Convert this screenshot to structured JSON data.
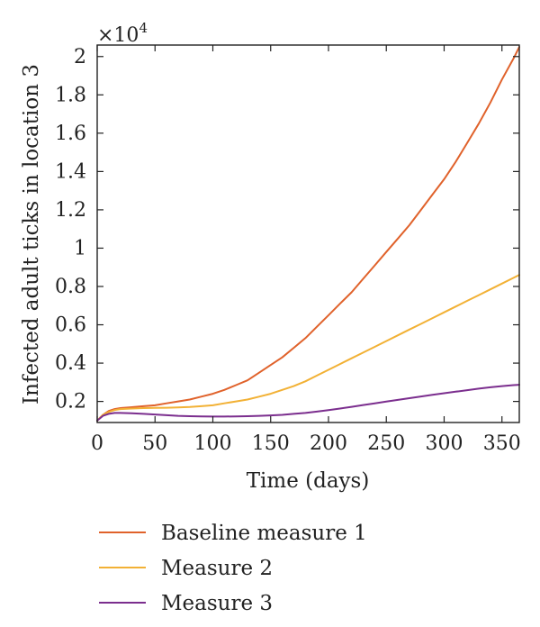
{
  "chart_data": {
    "type": "line",
    "xlabel": "Time (days)",
    "ylabel": "Infected adult ticks in location 3",
    "y_multiplier_base": "×10",
    "y_multiplier_exp": "4",
    "xlim": [
      0,
      365
    ],
    "ylim": [
      0.09,
      2.06
    ],
    "x_ticks": [
      0,
      50,
      100,
      150,
      200,
      250,
      300,
      350
    ],
    "x_tick_labels": [
      "0",
      "50",
      "100",
      "150",
      "200",
      "250",
      "300",
      "350"
    ],
    "y_ticks": [
      0.2,
      0.4,
      0.6,
      0.8,
      1.0,
      1.2,
      1.4,
      1.6,
      1.8,
      2.0
    ],
    "y_tick_labels": [
      "0.2",
      "0.4",
      "0.6",
      "0.8",
      "1",
      "1.2",
      "1.4",
      "1.6",
      "1.8",
      "2"
    ],
    "grid": false,
    "legend_position": "bottom",
    "series": [
      {
        "name": "Baseline measure 1",
        "color": "#E0622B",
        "x": [
          0,
          5,
          10,
          15,
          20,
          30,
          40,
          50,
          60,
          70,
          80,
          90,
          100,
          110,
          120,
          130,
          140,
          150,
          160,
          170,
          180,
          190,
          200,
          210,
          220,
          230,
          240,
          250,
          260,
          270,
          280,
          290,
          300,
          310,
          320,
          330,
          340,
          350,
          360,
          365
        ],
        "values": [
          0.1,
          0.13,
          0.15,
          0.16,
          0.165,
          0.17,
          0.175,
          0.18,
          0.19,
          0.2,
          0.21,
          0.225,
          0.24,
          0.26,
          0.285,
          0.31,
          0.35,
          0.39,
          0.43,
          0.48,
          0.53,
          0.59,
          0.65,
          0.71,
          0.77,
          0.84,
          0.91,
          0.98,
          1.05,
          1.12,
          1.2,
          1.28,
          1.36,
          1.45,
          1.55,
          1.65,
          1.76,
          1.88,
          1.99,
          2.05
        ]
      },
      {
        "name": "Measure 2",
        "color": "#F2B135",
        "x": [
          0,
          5,
          10,
          15,
          20,
          30,
          40,
          50,
          60,
          70,
          80,
          90,
          100,
          110,
          120,
          130,
          140,
          150,
          160,
          170,
          180,
          190,
          200,
          210,
          220,
          230,
          240,
          250,
          260,
          270,
          280,
          290,
          300,
          310,
          320,
          330,
          340,
          350,
          360,
          365
        ],
        "values": [
          0.1,
          0.13,
          0.145,
          0.155,
          0.16,
          0.163,
          0.165,
          0.166,
          0.167,
          0.169,
          0.171,
          0.175,
          0.18,
          0.19,
          0.2,
          0.21,
          0.225,
          0.24,
          0.26,
          0.28,
          0.305,
          0.335,
          0.365,
          0.395,
          0.425,
          0.455,
          0.485,
          0.515,
          0.545,
          0.575,
          0.605,
          0.635,
          0.665,
          0.695,
          0.725,
          0.755,
          0.785,
          0.815,
          0.845,
          0.86
        ]
      },
      {
        "name": "Measure 3",
        "color": "#7B2E8E",
        "x": [
          0,
          5,
          10,
          15,
          20,
          30,
          40,
          50,
          60,
          70,
          80,
          90,
          100,
          110,
          120,
          130,
          140,
          150,
          160,
          170,
          180,
          190,
          200,
          210,
          220,
          230,
          240,
          250,
          260,
          270,
          280,
          290,
          300,
          310,
          320,
          330,
          340,
          350,
          360,
          365
        ],
        "values": [
          0.1,
          0.125,
          0.135,
          0.14,
          0.14,
          0.138,
          0.135,
          0.132,
          0.128,
          0.125,
          0.123,
          0.122,
          0.121,
          0.121,
          0.122,
          0.123,
          0.125,
          0.127,
          0.13,
          0.135,
          0.14,
          0.147,
          0.155,
          0.163,
          0.172,
          0.181,
          0.19,
          0.199,
          0.208,
          0.217,
          0.226,
          0.235,
          0.243,
          0.251,
          0.259,
          0.267,
          0.274,
          0.28,
          0.285,
          0.287
        ]
      }
    ]
  }
}
